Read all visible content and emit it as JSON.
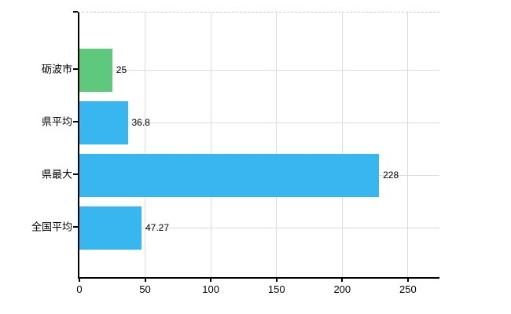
{
  "chart_data": {
    "type": "bar",
    "orientation": "horizontal",
    "categories": [
      "砺波市",
      "県平均",
      "県最大",
      "全国平均"
    ],
    "values": [
      25,
      36.8,
      228,
      47.27
    ],
    "value_labels": [
      "25",
      "36.8",
      "228",
      "47.27"
    ],
    "bar_colors": [
      "#5ec87d",
      "#38b6ef",
      "#38b6ef",
      "#38b6ef"
    ],
    "x_tick_labels": [
      "0",
      "50",
      "100",
      "150",
      "200",
      "250"
    ],
    "x_tick_values": [
      0,
      50,
      100,
      150,
      200,
      250
    ],
    "xlim": [
      0,
      274
    ],
    "grid": true,
    "legend_position": "none",
    "title": ""
  },
  "colors": {
    "highlight_bar": "#5ec87d",
    "default_bar": "#38b6ef",
    "grid": "#dcdcdc",
    "axis": "#000000",
    "top_border": "#c9c9c9",
    "text": "#000000",
    "background": "#ffffff"
  }
}
